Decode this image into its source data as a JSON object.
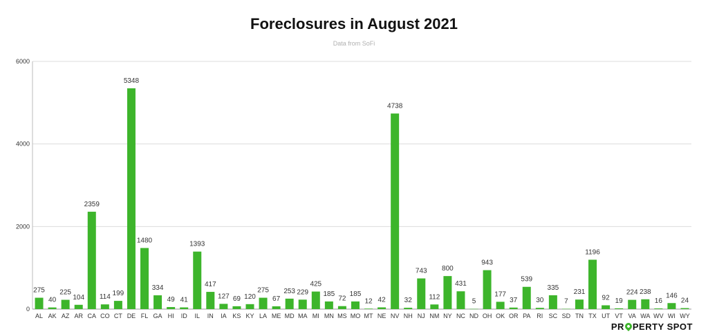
{
  "chart_data": {
    "type": "bar",
    "title": "Foreclosures in August 2021",
    "subtitle": "Data from SoFi",
    "xlabel": "",
    "ylabel": "",
    "ylim": [
      0,
      6000
    ],
    "yticks": [
      0,
      2000,
      4000,
      6000
    ],
    "grid": true,
    "bar_color": "#3db52b",
    "categories": [
      "AL",
      "AK",
      "AZ",
      "AR",
      "CA",
      "CO",
      "CT",
      "DE",
      "FL",
      "GA",
      "HI",
      "ID",
      "IL",
      "IN",
      "IA",
      "KS",
      "KY",
      "LA",
      "ME",
      "MD",
      "MA",
      "MI",
      "MN",
      "MS",
      "MO",
      "MT",
      "NE",
      "NV",
      "NH",
      "NJ",
      "NM",
      "NY",
      "NC",
      "ND",
      "OH",
      "OK",
      "OR",
      "PA",
      "RI",
      "SC",
      "SD",
      "TN",
      "TX",
      "UT",
      "VT",
      "VA",
      "WA",
      "WV",
      "WI",
      "WY"
    ],
    "values": [
      275,
      40,
      225,
      104,
      2359,
      114,
      199,
      5348,
      1480,
      334,
      49,
      41,
      1393,
      417,
      127,
      69,
      120,
      275,
      67,
      253,
      229,
      425,
      185,
      72,
      185,
      12,
      42,
      4738,
      32,
      743,
      112,
      800,
      431,
      5,
      943,
      177,
      37,
      539,
      30,
      335,
      7,
      231,
      1196,
      92,
      19,
      224,
      238,
      16,
      146,
      24
    ]
  },
  "brand": {
    "name_before_pin": "PR",
    "name_after_pin": "PERTY SPOT"
  }
}
